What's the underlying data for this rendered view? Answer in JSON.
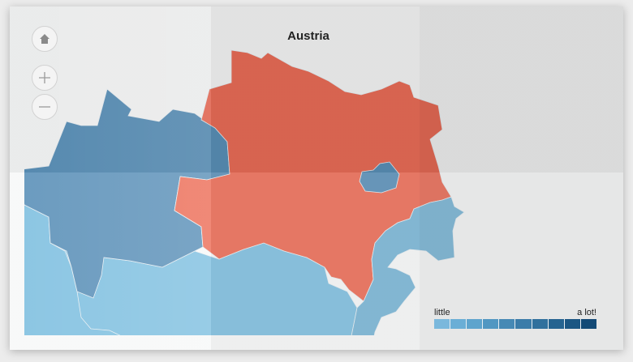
{
  "title": "Austria",
  "controls": {
    "home_icon": "home-icon",
    "zoom_in_icon": "plus-icon",
    "zoom_out_icon": "minus-icon"
  },
  "map": {
    "regions": [
      {
        "id": "region-lower-austria",
        "level": "high",
        "color": "#ec6d57"
      },
      {
        "id": "region-upper-austria",
        "level": "medium-high",
        "color": "#5a90b8"
      },
      {
        "id": "region-vienna",
        "level": "medium-high",
        "color": "#5a90b8"
      },
      {
        "id": "region-burgenland",
        "level": "low",
        "color": "#79b5d6"
      },
      {
        "id": "region-styria",
        "level": "low",
        "color": "#7fc0e0"
      },
      {
        "id": "region-salzburg",
        "level": "low",
        "color": "#7fc0e0"
      }
    ]
  },
  "legend": {
    "low_label": "little",
    "high_label": "a lot!",
    "colors": [
      "#7ab8dc",
      "#6aaed6",
      "#5ea4cd",
      "#5197c2",
      "#4689b5",
      "#3b7ca9",
      "#30709d",
      "#256390",
      "#1b5683",
      "#134a76"
    ]
  }
}
